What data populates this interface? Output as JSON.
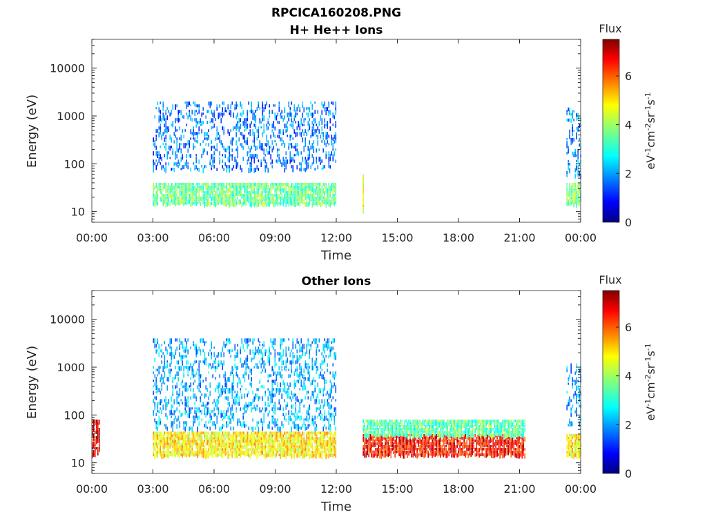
{
  "figure": {
    "title": "RPCICA160208.PNG"
  },
  "colors": {
    "axis": "#262626",
    "colormap": [
      "#00007f",
      "#0000ff",
      "#007fff",
      "#00ffff",
      "#7fff7f",
      "#ffff00",
      "#ff7f00",
      "#ff0000",
      "#7f0000"
    ]
  },
  "chart_data": [
    {
      "type": "heatmap",
      "title": "H+ He++ Ions",
      "xlabel": "Time",
      "ylabel": "Energy (eV)",
      "x_ticks": [
        "00:00",
        "03:00",
        "06:00",
        "09:00",
        "12:00",
        "15:00",
        "18:00",
        "21:00",
        "00:00"
      ],
      "x_range_hours": [
        0,
        24
      ],
      "y_scale": "log",
      "y_ticks": [
        "10",
        "100",
        "1000",
        "10000"
      ],
      "y_range": [
        6,
        40000
      ],
      "colorbar": {
        "title": "Flux",
        "label": "eV-1cm-2sr-1s-1",
        "ticks": [
          "0",
          "2",
          "4",
          "6"
        ],
        "range": [
          0,
          7.5
        ]
      },
      "regions": [
        {
          "t": [
            3.0,
            12.0
          ],
          "e": [
            15,
            40
          ],
          "flux": 3.6
        },
        {
          "t": [
            3.0,
            12.0
          ],
          "e": [
            80,
            2000
          ],
          "flux": 1.8
        },
        {
          "t": [
            13.3,
            13.35
          ],
          "e": [
            10,
            60
          ],
          "flux": 4.5
        },
        {
          "t": [
            23.3,
            24.0
          ],
          "e": [
            15,
            40
          ],
          "flux": 3.8
        },
        {
          "t": [
            23.3,
            24.0
          ],
          "e": [
            60,
            1500
          ],
          "flux": 2.0
        }
      ]
    },
    {
      "type": "heatmap",
      "title": "Other Ions",
      "xlabel": "Time",
      "ylabel": "Energy (eV)",
      "x_ticks": [
        "00:00",
        "03:00",
        "06:00",
        "09:00",
        "12:00",
        "15:00",
        "18:00",
        "21:00",
        "00:00"
      ],
      "x_range_hours": [
        0,
        24
      ],
      "y_scale": "log",
      "y_ticks": [
        "10",
        "100",
        "1000",
        "10000"
      ],
      "y_range": [
        6,
        40000
      ],
      "colorbar": {
        "title": "Flux",
        "label": "eV-1cm-2sr-1s-1",
        "ticks": [
          "0",
          "2",
          "4",
          "6"
        ],
        "range": [
          0,
          7.5
        ]
      },
      "regions": [
        {
          "t": [
            0.0,
            0.4
          ],
          "e": [
            15,
            80
          ],
          "flux": 6.8
        },
        {
          "t": [
            3.0,
            12.0
          ],
          "e": [
            15,
            45
          ],
          "flux": 4.8
        },
        {
          "t": [
            3.0,
            12.0
          ],
          "e": [
            50,
            4000
          ],
          "flux": 2.2
        },
        {
          "t": [
            13.3,
            21.3
          ],
          "e": [
            15,
            40
          ],
          "flux": 6.5
        },
        {
          "t": [
            13.3,
            21.3
          ],
          "e": [
            40,
            80
          ],
          "flux": 3.5
        },
        {
          "t": [
            23.3,
            24.0
          ],
          "e": [
            15,
            40
          ],
          "flux": 4.8
        },
        {
          "t": [
            23.3,
            24.0
          ],
          "e": [
            60,
            1200
          ],
          "flux": 2.2
        }
      ]
    }
  ]
}
